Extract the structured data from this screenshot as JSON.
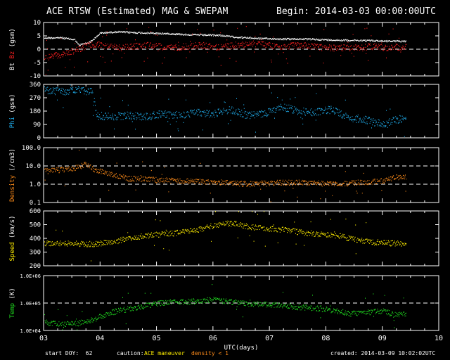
{
  "header": {
    "title": "ACE RTSW (Estimated) MAG & SWEPAM",
    "begin": "Begin: 2014-03-03 00:00:00UTC"
  },
  "footer": {
    "start_doy": "start DOY:  62",
    "caution": "caution:",
    "ace_maneuver": "ACE maneuver",
    "density_note": "density < 1",
    "created": "created: 2014-03-09 10:02:02UTC"
  },
  "colors": {
    "bt": "#ffffff",
    "bz": "#ff2020",
    "phi": "#20b0f0",
    "density": "#ff8c1a",
    "speed": "#ffee00",
    "temp": "#20e020",
    "frame": "#ffffff",
    "background": "#000000",
    "maneuver": "#ffee00",
    "density_note": "#ff8c1a"
  },
  "chart_data": [
    {
      "type": "scatter",
      "id": "mag",
      "ylabel_prefix": "Bt",
      "ylabel_colored": "Bz",
      "ylabel_suffix": "(gsm)",
      "ylim": [
        -10,
        10
      ],
      "yticks": [
        -10,
        -5,
        0,
        5,
        10
      ],
      "yticklabels": [
        "-10",
        "-5",
        "0",
        "5",
        "10"
      ],
      "reference_lines": [
        0
      ],
      "x_range": [
        3,
        10
      ],
      "data_end": 9.42,
      "series": [
        {
          "key": "bt",
          "color": "#ffffff",
          "x": [
            3.0,
            3.3,
            3.55,
            3.62,
            3.8,
            3.9,
            4.0,
            4.3,
            4.6,
            4.9,
            5.2,
            5.5,
            5.8,
            6.1,
            6.4,
            6.8,
            7.2,
            7.6,
            8.0,
            8.4,
            8.8,
            9.1,
            9.42
          ],
          "y": [
            4.2,
            4.3,
            3.5,
            1.5,
            2.5,
            4.0,
            6.0,
            6.5,
            6.2,
            6.0,
            5.8,
            5.5,
            5.3,
            5.2,
            4.5,
            4.0,
            3.8,
            3.8,
            3.5,
            3.3,
            3.2,
            3.0,
            3.0
          ]
        },
        {
          "key": "bz",
          "color": "#ff2020",
          "x": [
            3.0,
            3.3,
            3.55,
            3.8,
            4.0,
            4.3,
            4.6,
            4.9,
            5.2,
            5.5,
            5.8,
            6.1,
            6.4,
            6.8,
            7.2,
            7.6,
            8.0,
            8.4,
            8.8,
            9.1,
            9.42
          ],
          "y": [
            -3.5,
            -2.0,
            -0.5,
            1.5,
            1.5,
            0.5,
            1.0,
            1.5,
            0.5,
            1.0,
            1.5,
            0.5,
            1.5,
            2.0,
            1.0,
            1.5,
            0.5,
            0.5,
            1.0,
            0.5,
            1.0
          ]
        }
      ]
    },
    {
      "type": "scatter",
      "id": "phi",
      "ylabel_colored": "Phi",
      "ylabel_suffix": "(gsm)",
      "ylim": [
        0,
        360
      ],
      "yticks": [
        0,
        90,
        180,
        270,
        360
      ],
      "yticklabels": [
        "0",
        "90",
        "180",
        "270",
        "360"
      ],
      "reference_lines": [],
      "x_range": [
        3,
        10
      ],
      "data_end": 9.42,
      "series": [
        {
          "key": "phi",
          "color": "#20b0f0",
          "x": [
            3.0,
            3.3,
            3.6,
            3.85,
            3.95,
            4.2,
            4.5,
            4.8,
            5.1,
            5.4,
            5.7,
            6.0,
            6.3,
            6.6,
            6.9,
            7.2,
            7.5,
            7.8,
            8.1,
            8.4,
            8.7,
            9.0,
            9.2,
            9.42
          ],
          "y": [
            320,
            310,
            320,
            310,
            150,
            140,
            150,
            140,
            160,
            150,
            170,
            160,
            190,
            150,
            160,
            210,
            180,
            170,
            190,
            130,
            120,
            90,
            120,
            130
          ]
        }
      ]
    },
    {
      "type": "scatter",
      "id": "density",
      "ylabel_colored": "Density",
      "ylabel_suffix": "(/cm3)",
      "yscale": "log",
      "ylim": [
        0.1,
        100
      ],
      "yticks": [
        0.1,
        1,
        10,
        100
      ],
      "yticklabels": [
        "0.1",
        "1.0",
        "10.0",
        "100.0"
      ],
      "reference_lines": [
        1,
        10
      ],
      "x_range": [
        3,
        10
      ],
      "data_end": 9.42,
      "series": [
        {
          "key": "density",
          "color": "#ff8c1a",
          "x": [
            3.0,
            3.3,
            3.6,
            3.75,
            3.9,
            4.2,
            4.5,
            4.8,
            5.1,
            5.4,
            5.7,
            6.0,
            6.3,
            6.6,
            6.9,
            7.2,
            7.5,
            7.8,
            8.1,
            8.4,
            8.7,
            9.0,
            9.2,
            9.42
          ],
          "y": [
            5.0,
            6.0,
            8.0,
            12.0,
            6.0,
            3.5,
            2.0,
            1.8,
            1.6,
            1.5,
            1.4,
            1.3,
            1.2,
            1.0,
            1.1,
            1.2,
            1.2,
            1.1,
            1.1,
            1.1,
            1.3,
            1.5,
            2.2,
            2.6
          ]
        }
      ]
    },
    {
      "type": "scatter",
      "id": "speed",
      "ylabel_colored": "Speed",
      "ylabel_suffix": "(km/s)",
      "ylim": [
        200,
        600
      ],
      "yticks": [
        200,
        300,
        400,
        500,
        600
      ],
      "yticklabels": [
        "200",
        "300",
        "400",
        "500",
        "600"
      ],
      "reference_lines": [],
      "x_range": [
        3,
        10
      ],
      "data_end": 9.42,
      "series": [
        {
          "key": "speed",
          "color": "#ffee00",
          "x": [
            3.0,
            3.3,
            3.6,
            3.9,
            4.2,
            4.5,
            4.8,
            5.1,
            5.4,
            5.7,
            6.0,
            6.2,
            6.4,
            6.7,
            7.0,
            7.3,
            7.6,
            7.9,
            8.2,
            8.5,
            8.8,
            9.1,
            9.42
          ],
          "y": [
            365,
            362,
            360,
            358,
            370,
            400,
            420,
            430,
            440,
            460,
            490,
            510,
            505,
            480,
            470,
            460,
            440,
            430,
            420,
            390,
            375,
            365,
            360
          ]
        }
      ]
    },
    {
      "type": "scatter",
      "id": "temp",
      "ylabel_colored": "Temp",
      "ylabel_suffix": "(K)",
      "yscale": "log",
      "ylim": [
        10000,
        1000000
      ],
      "yticks": [
        10000,
        100000,
        1000000
      ],
      "yticklabels": [
        "1.0E+04",
        "1.0E+05",
        "1.0E+06"
      ],
      "reference_lines": [
        100000
      ],
      "x_range": [
        3,
        10
      ],
      "data_end": 9.42,
      "series": [
        {
          "key": "temp",
          "color": "#20e020",
          "x": [
            3.0,
            3.3,
            3.6,
            3.9,
            4.2,
            4.5,
            4.8,
            5.1,
            5.4,
            5.7,
            6.0,
            6.3,
            6.6,
            6.9,
            7.2,
            7.5,
            7.8,
            8.1,
            8.4,
            8.7,
            9.0,
            9.2,
            9.42
          ],
          "y": [
            20000,
            16000,
            18000,
            25000,
            45000,
            60000,
            80000,
            100000,
            110000,
            115000,
            130000,
            110000,
            95000,
            90000,
            80000,
            70000,
            65000,
            55000,
            40000,
            45000,
            50000,
            38000,
            40000
          ]
        }
      ]
    }
  ],
  "xaxis": {
    "xlabel": "UTC(days)",
    "ticks": [
      3,
      4,
      5,
      6,
      7,
      8,
      9,
      10
    ],
    "ticklabels": [
      "03",
      "04",
      "05",
      "06",
      "07",
      "08",
      "09",
      "10"
    ]
  }
}
